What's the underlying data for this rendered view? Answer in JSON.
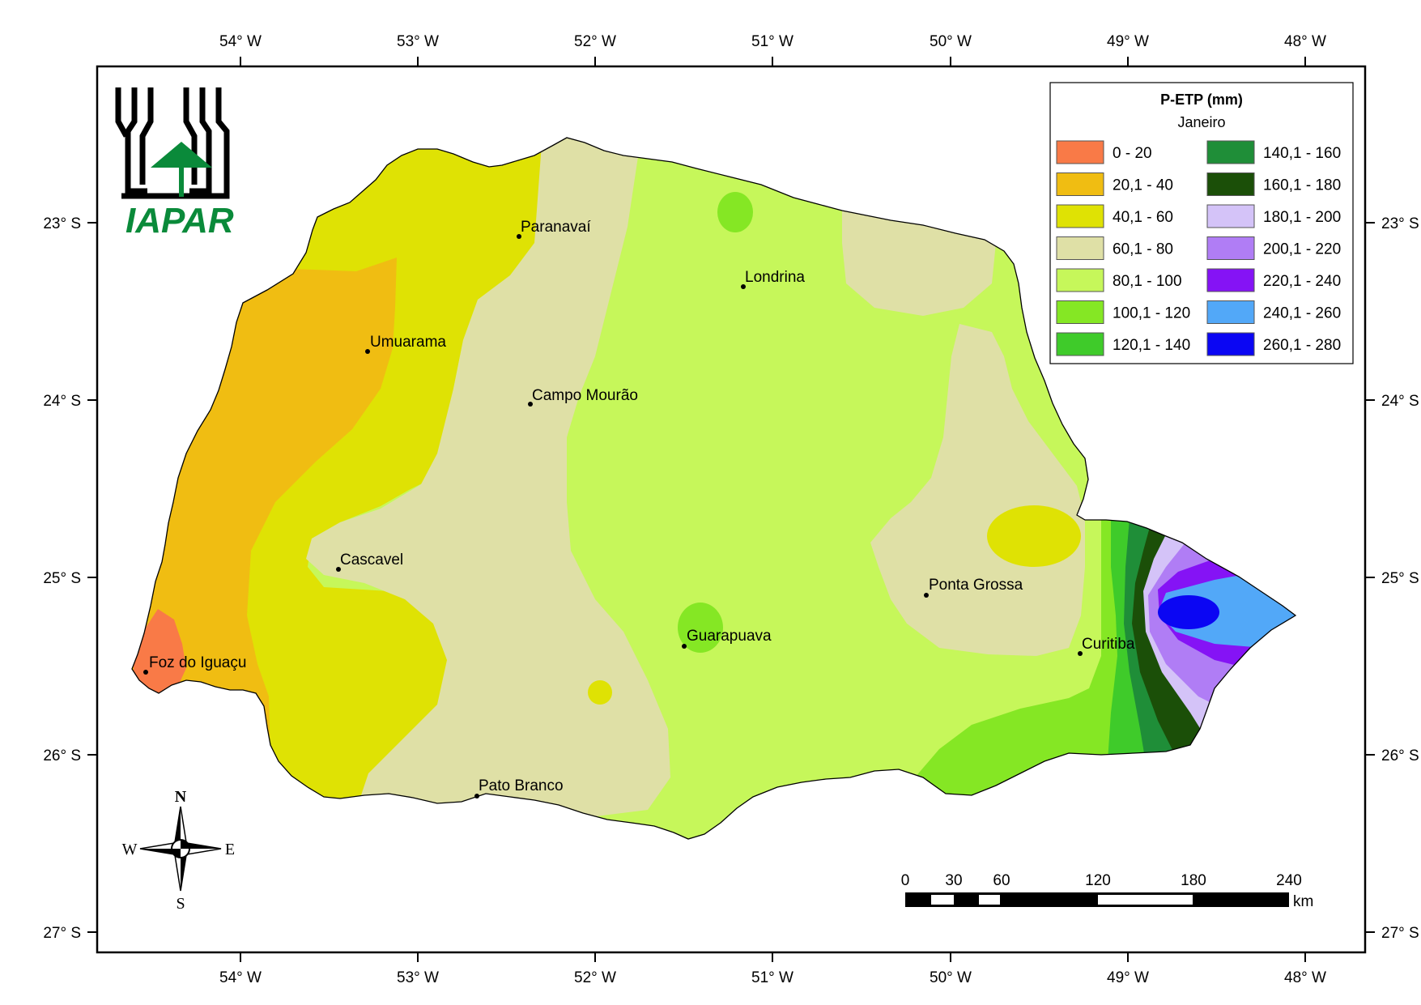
{
  "top_lon_labels": [
    "54° W",
    "53° W",
    "52° W",
    "51° W",
    "50° W",
    "49° W",
    "48° W"
  ],
  "bottom_lon_labels": [
    "54° W",
    "53° W",
    "52° W",
    "51° W",
    "50° W",
    "49° W",
    "48° W"
  ],
  "left_lat_labels": [
    "23° S",
    "24° S",
    "25° S",
    "26° S",
    "27° S"
  ],
  "right_lat_labels": [
    "23° S",
    "24° S",
    "25° S",
    "26° S",
    "27° S"
  ],
  "logo": {
    "text": "IAPAR",
    "color": "#0a8a3a"
  },
  "legend": {
    "title": "P-ETP (mm)",
    "subtitle": "Janeiro",
    "classes": [
      {
        "label": "0 - 20",
        "color": "#f97a47"
      },
      {
        "label": "20,1 - 40",
        "color": "#f0bd12"
      },
      {
        "label": "40,1 - 60",
        "color": "#dfe204"
      },
      {
        "label": "60,1 - 80",
        "color": "#dfe0a6"
      },
      {
        "label": "80,1 - 100",
        "color": "#c6f75a"
      },
      {
        "label": "100,1 - 120",
        "color": "#85e724"
      },
      {
        "label": "120,1 - 140",
        "color": "#3fcb2a"
      },
      {
        "label": "140,1 - 160",
        "color": "#1f8e38"
      },
      {
        "label": "160,1 - 180",
        "color": "#1b4f08"
      },
      {
        "label": "180,1 - 200",
        "color": "#d4c3f8"
      },
      {
        "label": "200,1 - 220",
        "color": "#b07df5"
      },
      {
        "label": "220,1 - 240",
        "color": "#8513f5"
      },
      {
        "label": "240,1 - 260",
        "color": "#52a8f8"
      },
      {
        "label": "260,1 - 280",
        "color": "#0b06f3"
      }
    ]
  },
  "cities": [
    {
      "name": "Paranavaí"
    },
    {
      "name": "Londrina"
    },
    {
      "name": "Umuarama"
    },
    {
      "name": "Campo Mourão"
    },
    {
      "name": "Cascavel"
    },
    {
      "name": "Ponta Grossa"
    },
    {
      "name": "Guarapuava"
    },
    {
      "name": "Curitiba"
    },
    {
      "name": "Foz do Iguaçu"
    },
    {
      "name": "Pato Branco"
    }
  ],
  "compass": {
    "north": "N",
    "south": "S",
    "east": "E",
    "west": "W"
  },
  "scale_bar": {
    "ticks": [
      "0",
      "30",
      "60",
      "120",
      "180",
      "240"
    ],
    "unit": "km"
  }
}
